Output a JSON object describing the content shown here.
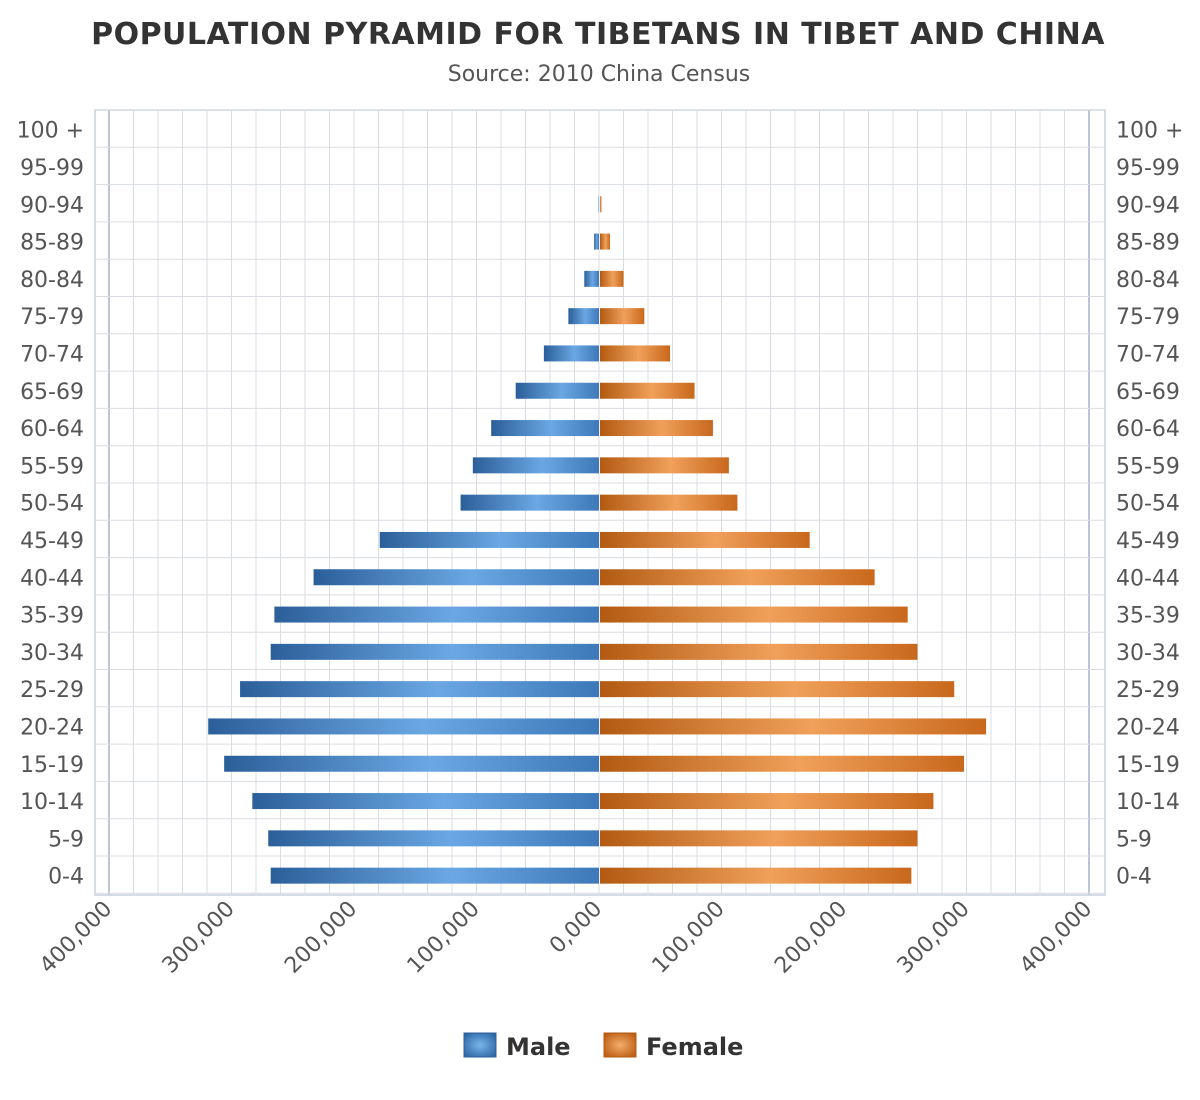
{
  "chart_data": {
    "type": "bar",
    "orientation": "horizontal",
    "layout": "population-pyramid",
    "title": "POPULATION PYRAMID FOR TIBETANS IN TIBET AND CHINA",
    "subtitle": "Source: 2010 China Census",
    "categories": [
      "100 +",
      "95-99",
      "90-94",
      "85-89",
      "80-84",
      "75-79",
      "70-74",
      "65-69",
      "60-64",
      "55-59",
      "50-54",
      "45-49",
      "40-44",
      "35-39",
      "30-34",
      "25-29",
      "20-24",
      "15-19",
      "10-14",
      "5-9",
      "0-4"
    ],
    "series": [
      {
        "name": "Male",
        "direction": "left",
        "color": "#3f7fc0",
        "values": [
          0,
          0,
          500,
          4000,
          12000,
          25000,
          45000,
          68000,
          88000,
          103000,
          113000,
          179000,
          233000,
          265000,
          268000,
          293000,
          319000,
          306000,
          283000,
          270000,
          268000
        ]
      },
      {
        "name": "Female",
        "direction": "right",
        "color": "#d97a2a",
        "values": [
          0,
          0,
          2000,
          9000,
          20000,
          37000,
          58000,
          78000,
          93000,
          106000,
          113000,
          172000,
          225000,
          252000,
          260000,
          290000,
          316000,
          298000,
          273000,
          260000,
          255000
        ]
      }
    ],
    "xlim": [
      -400000,
      400000
    ],
    "xticks": [
      {
        "value": -400000,
        "label": "400,000"
      },
      {
        "value": -300000,
        "label": "300,000"
      },
      {
        "value": -200000,
        "label": "200,000"
      },
      {
        "value": -100000,
        "label": "100,000"
      },
      {
        "value": 0,
        "label": "0,000"
      },
      {
        "value": 100000,
        "label": "100,000"
      },
      {
        "value": 200000,
        "label": "200,000"
      },
      {
        "value": 300000,
        "label": "300,000"
      },
      {
        "value": 400000,
        "label": "400,000"
      }
    ],
    "grid": true,
    "legend_position": "bottom-center"
  }
}
